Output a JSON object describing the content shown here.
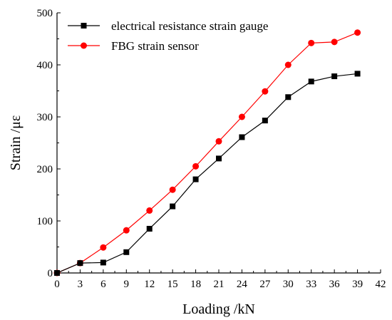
{
  "chart_data": {
    "type": "line",
    "title": "",
    "xlabel": "Loading /kN",
    "ylabel": "Strain /με",
    "xlim": [
      0,
      42
    ],
    "ylim": [
      0,
      500
    ],
    "x_ticks": [
      0,
      3,
      6,
      9,
      12,
      15,
      18,
      21,
      24,
      27,
      30,
      33,
      36,
      39,
      42
    ],
    "y_ticks": [
      0,
      100,
      200,
      300,
      400,
      500
    ],
    "grid": false,
    "legend_position": "top-left",
    "series": [
      {
        "name": "electrical resistance strain gauge",
        "color": "#000000",
        "marker": "square",
        "x": [
          0,
          3,
          6,
          9,
          12,
          15,
          18,
          21,
          24,
          27,
          30,
          33,
          36,
          39
        ],
        "y": [
          0,
          19,
          20,
          40,
          85,
          128,
          180,
          220,
          261,
          293,
          338,
          368,
          378,
          383
        ]
      },
      {
        "name": "FBG strain sensor",
        "color": "#ff0000",
        "marker": "circle",
        "x": [
          0,
          3,
          6,
          9,
          12,
          15,
          18,
          21,
          24,
          27,
          30,
          33,
          36,
          39
        ],
        "y": [
          0,
          19,
          49,
          82,
          120,
          160,
          205,
          253,
          300,
          349,
          400,
          442,
          444,
          462
        ]
      }
    ]
  }
}
